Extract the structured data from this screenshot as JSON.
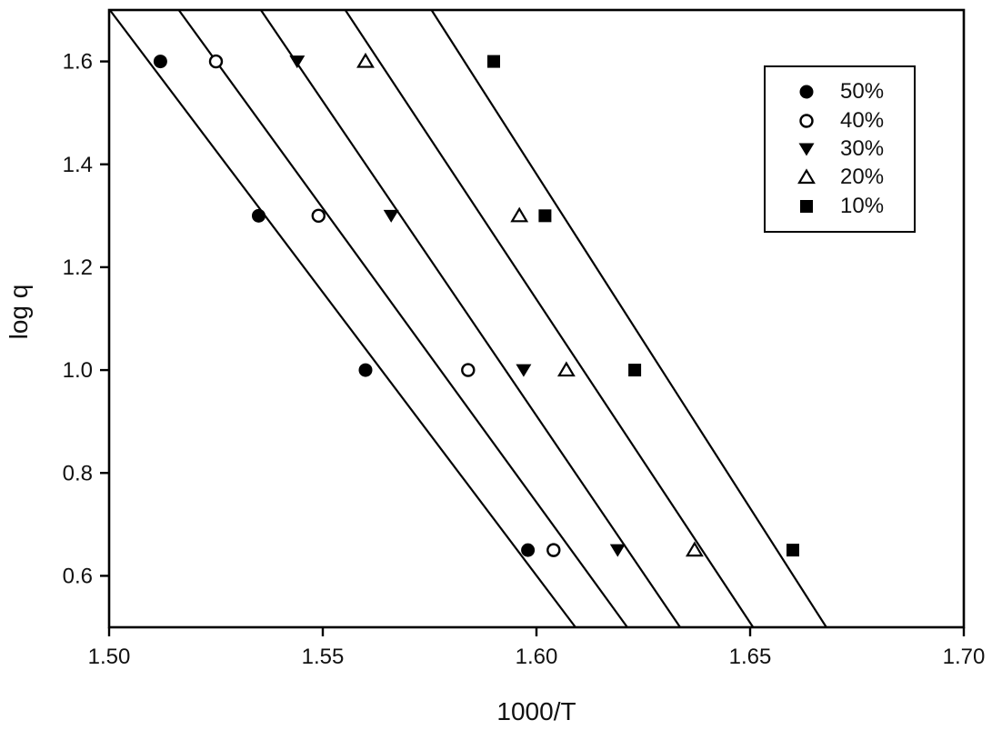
{
  "chart_data": {
    "type": "scatter",
    "title": "",
    "xlabel": "1000/T",
    "ylabel": "log q",
    "xlim": [
      1.5,
      1.7
    ],
    "ylim": [
      0.5,
      1.7
    ],
    "xtick_labels": [
      "1.50",
      "1.55",
      "1.60",
      "1.65",
      "1.70"
    ],
    "xticks": [
      1.5,
      1.55,
      1.6,
      1.65,
      1.7
    ],
    "ytick_labels": [
      "0.6",
      "0.8",
      "1.0",
      "1.2",
      "1.4",
      "1.6"
    ],
    "yticks": [
      0.6,
      0.8,
      1.0,
      1.2,
      1.4,
      1.6
    ],
    "grid": false,
    "legend_position": "top-right",
    "fit_lines": "linear-regression-per-series",
    "series": [
      {
        "name": "50%",
        "marker": "filled-circle",
        "points": [
          [
            1.512,
            1.6
          ],
          [
            1.535,
            1.3
          ],
          [
            1.56,
            1.0
          ],
          [
            1.598,
            0.65
          ]
        ]
      },
      {
        "name": "40%",
        "marker": "open-circle",
        "points": [
          [
            1.525,
            1.6
          ],
          [
            1.549,
            1.3
          ],
          [
            1.584,
            1.0
          ],
          [
            1.604,
            0.65
          ]
        ]
      },
      {
        "name": "30%",
        "marker": "filled-triangle-down",
        "points": [
          [
            1.544,
            1.6
          ],
          [
            1.566,
            1.3
          ],
          [
            1.597,
            1.0
          ],
          [
            1.619,
            0.65
          ]
        ]
      },
      {
        "name": "20%",
        "marker": "open-triangle-up",
        "points": [
          [
            1.56,
            1.6
          ],
          [
            1.596,
            1.3
          ],
          [
            1.607,
            1.0
          ],
          [
            1.637,
            0.65
          ]
        ]
      },
      {
        "name": "10%",
        "marker": "filled-square",
        "points": [
          [
            1.59,
            1.6
          ],
          [
            1.602,
            1.3
          ],
          [
            1.623,
            1.0
          ],
          [
            1.66,
            0.65
          ]
        ]
      }
    ],
    "colors": {
      "foreground": "#000000",
      "background": "#ffffff"
    }
  }
}
